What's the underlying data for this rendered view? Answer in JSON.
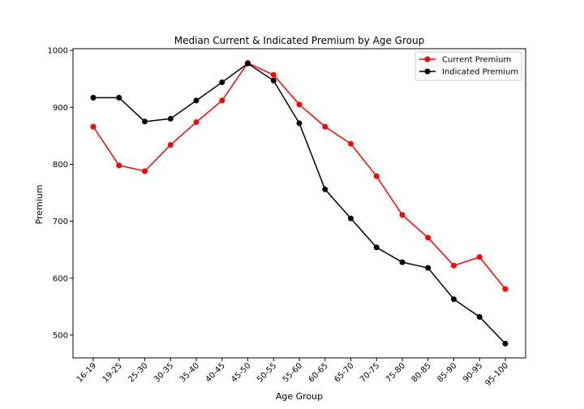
{
  "chart_data": {
    "type": "line",
    "title": "Median Current & Indicated Premium by Age Group",
    "xlabel": "Age Group",
    "ylabel": "Premium",
    "categories": [
      "16-19",
      "19-25",
      "25-30",
      "30-35",
      "35-40",
      "40-45",
      "45-50",
      "50-55",
      "55-60",
      "60-65",
      "65-70",
      "70-75",
      "75-80",
      "80-85",
      "85-90",
      "90-95",
      "95-100"
    ],
    "ylim": [
      460,
      1003
    ],
    "yticks": [
      500,
      600,
      700,
      800,
      900,
      1000
    ],
    "grid": false,
    "legend_position": "top-right",
    "series": [
      {
        "name": "Current Premium",
        "color": "#ff0000",
        "values": [
          866,
          798,
          788,
          834,
          874,
          912,
          978,
          957,
          905,
          866,
          836,
          779,
          711,
          671,
          622,
          637,
          581
        ]
      },
      {
        "name": "Indicated Premium",
        "color": "#000000",
        "values": [
          917,
          917,
          875,
          880,
          912,
          944,
          977,
          947,
          872,
          756,
          705,
          654,
          628,
          618,
          563,
          532,
          485
        ]
      }
    ]
  }
}
